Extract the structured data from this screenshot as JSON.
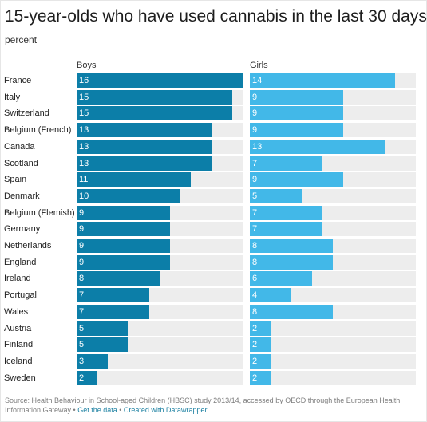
{
  "colors": {
    "boys": "#0c7ea8",
    "girls": "#42b8e8",
    "track": "#ededed"
  },
  "chart_data": {
    "type": "bar",
    "title": "15-year-olds who have used cannabis in the last 30 days",
    "subtitle": "percent",
    "xlim": [
      0,
      16
    ],
    "categories": [
      "France",
      "Italy",
      "Switzerland",
      "Belgium (French)",
      "Canada",
      "Scotland",
      "Spain",
      "Denmark",
      "Belgium (Flemish)",
      "Germany",
      "Netherlands",
      "England",
      "Ireland",
      "Portugal",
      "Wales",
      "Austria",
      "Finland",
      "Iceland",
      "Sweden"
    ],
    "series": [
      {
        "name": "Boys",
        "values": [
          16,
          15,
          15,
          13,
          13,
          13,
          11,
          10,
          9,
          9,
          9,
          9,
          8,
          7,
          7,
          5,
          5,
          3,
          2
        ]
      },
      {
        "name": "Girls",
        "values": [
          14,
          9,
          9,
          9,
          13,
          7,
          9,
          5,
          7,
          7,
          8,
          8,
          6,
          4,
          8,
          2,
          2,
          2,
          2
        ]
      }
    ]
  },
  "footer": {
    "source": "Source: Health Behaviour in School-aged Children (HBSC) study 2013/14, accessed by OECD through the European Health Information Gateway",
    "sep1": " • ",
    "get_data": "Get the data",
    "sep2": " • ",
    "created_with": "Created with Datawrapper"
  }
}
